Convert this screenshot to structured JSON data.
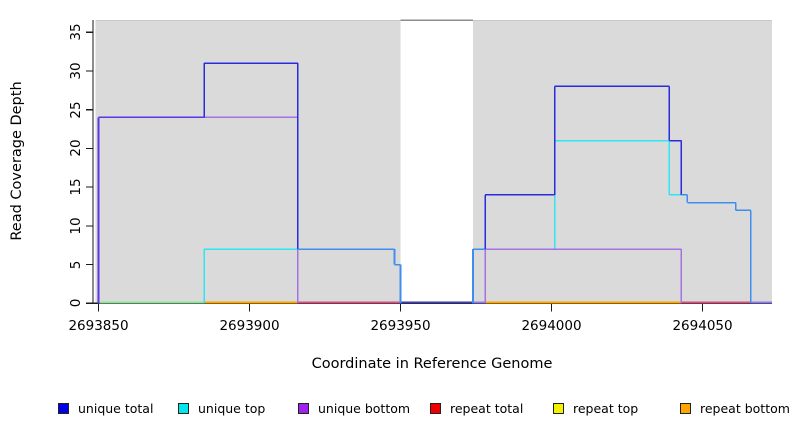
{
  "chart_data": {
    "type": "line",
    "subtype": "step-coverage",
    "title": "",
    "xlabel": "Coordinate in Reference Genome",
    "ylabel": "Read Coverage Depth",
    "xlim": [
      2693848,
      2694073
    ],
    "ylim": [
      0,
      36.6
    ],
    "x_ticks": [
      2693850,
      2693900,
      2693950,
      2694000,
      2694050
    ],
    "y_ticks": [
      0,
      5,
      10,
      15,
      20,
      25,
      30,
      35
    ],
    "grid": "off",
    "background_color": "#ffffff",
    "shaded_regions": [
      {
        "from": 2693849,
        "to": 2693950,
        "fill": "#dadada"
      },
      {
        "from": 2693974,
        "to": 2694073,
        "fill": "#dadada"
      }
    ],
    "gap_region": {
      "from": 2693950,
      "to": 2693974,
      "top_edge_color": "#8d8d8d"
    },
    "region_top_edge_color": "#c8c8c8",
    "series": [
      {
        "name": "unique total",
        "color": "#2a2ae0",
        "blend_with_top": "#3e8def",
        "blend_with_bottom": "#5b35e6",
        "steps": [
          [
            2693850,
            24
          ],
          [
            2693885,
            31
          ],
          [
            2693916,
            7
          ],
          [
            2693948,
            5
          ],
          [
            2693950,
            0
          ],
          [
            2693974,
            7
          ],
          [
            2693978,
            14
          ],
          [
            2694001,
            28
          ],
          [
            2694039,
            21
          ],
          [
            2694043,
            14
          ],
          [
            2694045,
            13
          ],
          [
            2694061,
            12
          ],
          [
            2694066,
            0
          ],
          [
            2694073,
            0
          ]
        ]
      },
      {
        "name": "unique top",
        "color": "#2fe5f0",
        "steps": [
          [
            2693850,
            0
          ],
          [
            2693885,
            7
          ],
          [
            2693948,
            5
          ],
          [
            2693950,
            0
          ],
          [
            2693974,
            7
          ],
          [
            2694001,
            21
          ],
          [
            2694039,
            14
          ],
          [
            2694045,
            13
          ],
          [
            2694061,
            12
          ],
          [
            2694066,
            0
          ],
          [
            2694073,
            0
          ]
        ]
      },
      {
        "name": "unique bottom",
        "color": "#a671e6",
        "steps": [
          [
            2693850,
            24
          ],
          [
            2693916,
            0
          ],
          [
            2693978,
            7
          ],
          [
            2694043,
            0
          ],
          [
            2694073,
            0
          ]
        ]
      },
      {
        "name": "repeat total",
        "color": "#ee0000",
        "steps": [
          [
            2693850,
            0
          ],
          [
            2694073,
            0
          ]
        ]
      },
      {
        "name": "repeat top",
        "color": "#f2f200",
        "steps": [
          [
            2693850,
            0
          ],
          [
            2694073,
            0
          ]
        ]
      },
      {
        "name": "repeat bottom",
        "color": "#ffa500",
        "steps": [
          [
            2693850,
            0
          ],
          [
            2694073,
            0
          ]
        ]
      }
    ],
    "baseline_overlay": [
      {
        "from": 2693850,
        "to": 2693885,
        "color": "#90e39b"
      },
      {
        "from": 2693885,
        "to": 2693916,
        "color": "#ffa500"
      },
      {
        "from": 2693916,
        "to": 2693950,
        "color": "#d2517f"
      },
      {
        "from": 2693950,
        "to": 2693974,
        "color": "#3c3ca8"
      },
      {
        "from": 2693974,
        "to": 2693978,
        "color": "#8f7bea"
      },
      {
        "from": 2693978,
        "to": 2694043,
        "color": "#ffa500"
      },
      {
        "from": 2694043,
        "to": 2694066,
        "color": "#d2517f"
      },
      {
        "from": 2694066,
        "to": 2694073,
        "color": "#8f7bea"
      }
    ]
  },
  "legend": {
    "items": [
      {
        "label": "unique total",
        "color": "#0000e6"
      },
      {
        "label": "unique top",
        "color": "#00e5ee"
      },
      {
        "label": "unique bottom",
        "color": "#a020f0"
      },
      {
        "label": "repeat total",
        "color": "#ee0000"
      },
      {
        "label": "repeat top",
        "color": "#f2f200"
      },
      {
        "label": "repeat bottom",
        "color": "#ffa500"
      }
    ]
  }
}
